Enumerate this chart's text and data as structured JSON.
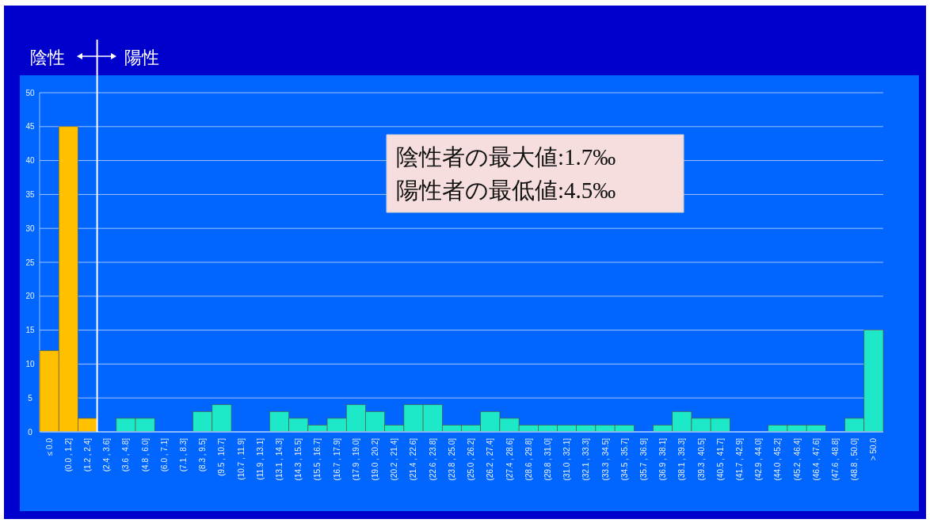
{
  "chart_data": {
    "type": "bar",
    "categories": [
      "≤ 0.0",
      "(0.0 , 1.2]",
      "(1.2 , 2.4]",
      "(2.4 , 3.6]",
      "(3.6 , 4.8]",
      "(4.8 , 6.0]",
      "(6.0 , 7.1]",
      "(7.1 , 8.3]",
      "(8.3 , 9.5]",
      "(9.5 , 10.7]",
      "(10.7 , 11.9]",
      "(11.9 , 13.1]",
      "(13.1 , 14.3]",
      "(14.3 , 15.5]",
      "(15.5 , 16.7]",
      "(16.7 , 17.9]",
      "(17.9 , 19.0]",
      "(19.0 , 20.2]",
      "(20.2 , 21.4]",
      "(21.4 , 22.6]",
      "(22.6 , 23.8]",
      "(23.8 , 25.0]",
      "(25.0 , 26.2]",
      "(26.2 , 27.4]",
      "(27.4 , 28.6]",
      "(28.6 , 29.8]",
      "(29.8 , 31.0]",
      "(31.0 , 32.1]",
      "(32.1 , 33.3]",
      "(33.3 , 34.5]",
      "(34.5 , 35.7]",
      "(35.7 , 36.9]",
      "(36.9 , 38.1]",
      "(38.1 , 39.3]",
      "(39.3 , 40.5]",
      "(40.5 , 41.7]",
      "(41.7 , 42.9]",
      "(42.9 , 44.0]",
      "(44.0 , 45.2]",
      "(45.2 , 46.4]",
      "(46.4 , 47.6]",
      "(47.6 , 48.8]",
      "(48.8 , 50.0]",
      "> 50.0"
    ],
    "values": [
      12,
      45,
      2,
      0,
      2,
      2,
      0,
      0,
      3,
      4,
      0,
      0,
      3,
      2,
      1,
      2,
      4,
      3,
      1,
      4,
      4,
      1,
      1,
      3,
      2,
      1,
      1,
      1,
      1,
      1,
      1,
      0,
      1,
      3,
      2,
      2,
      0,
      0,
      1,
      1,
      1,
      0,
      2,
      15
    ],
    "colors": [
      "#ffc000",
      "#ffc000",
      "#ffc000",
      "#1de9c8",
      "#1de9c8",
      "#1de9c8",
      "#1de9c8",
      "#1de9c8",
      "#1de9c8",
      "#1de9c8",
      "#1de9c8",
      "#1de9c8",
      "#1de9c8",
      "#1de9c8",
      "#1de9c8",
      "#1de9c8",
      "#1de9c8",
      "#1de9c8",
      "#1de9c8",
      "#1de9c8",
      "#1de9c8",
      "#1de9c8",
      "#1de9c8",
      "#1de9c8",
      "#1de9c8",
      "#1de9c8",
      "#1de9c8",
      "#1de9c8",
      "#1de9c8",
      "#1de9c8",
      "#1de9c8",
      "#1de9c8",
      "#1de9c8",
      "#1de9c8",
      "#1de9c8",
      "#1de9c8",
      "#1de9c8",
      "#1de9c8",
      "#1de9c8",
      "#1de9c8",
      "#1de9c8",
      "#1de9c8",
      "#1de9c8",
      "#1de9c8"
    ],
    "ref_lines": [
      {
        "axis": "x",
        "value": "(1.2 , 2.4]",
        "color": "#ffffff"
      }
    ],
    "ylim": [
      0,
      50
    ],
    "yticks": [
      0,
      5,
      10,
      15,
      20,
      25,
      30,
      35,
      40,
      45,
      50
    ],
    "grid": "y",
    "annotations": [
      "陰性",
      "陽性",
      "陰性者の最大値:1.7‰",
      "陽性者の最低値:4.5‰"
    ]
  }
}
